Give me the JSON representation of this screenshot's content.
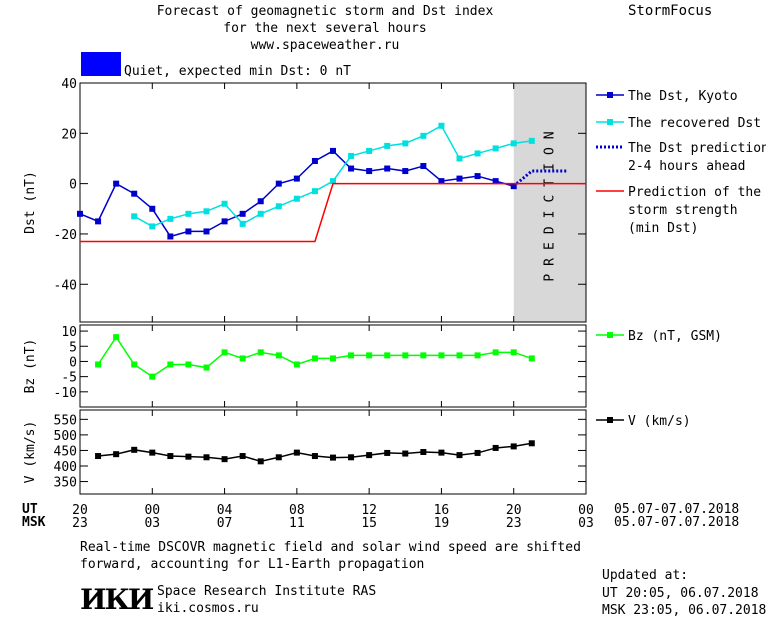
{
  "header": {
    "title_lines": [
      "Forecast of geomagnetic storm and Dst index",
      "for the next several hours",
      "www.spaceweather.ru"
    ],
    "brand": "StormFocus",
    "status_label": "Quiet, expected min Dst: 0 nT",
    "status_color": "#0000ff"
  },
  "footer": {
    "note_lines": [
      "Real-time DSCOVR magnetic field and solar wind speed are shifted",
      "forward, accounting for L1-Earth propagation"
    ],
    "logo_text": "ИКИ",
    "institute_lines": [
      "Space Research Institute RAS",
      "iki.cosmos.ru"
    ],
    "updated_label": "Updated at:",
    "updated_ut": "UT  20:05, 06.07.2018",
    "updated_msk": "MSK 23:05, 06.07.2018"
  },
  "chart_data": [
    {
      "type": "line",
      "ylabel": "Dst (nT)",
      "ylim": [
        -55,
        40
      ],
      "yticks": [
        40,
        20,
        0,
        -20,
        -40
      ],
      "prediction_text": "PREDICTION",
      "series": [
        {
          "name": "The Dst, Kyoto",
          "color": "#0000cc",
          "marker": "square",
          "x": [
            -4,
            -3,
            -2,
            -1,
            0,
            1,
            2,
            3,
            4,
            5,
            6,
            7,
            8,
            9,
            10,
            11,
            12,
            13,
            14,
            15,
            16,
            17,
            18,
            19,
            20
          ],
          "y": [
            -12,
            -15,
            0,
            -4,
            -10,
            -21,
            -19,
            -19,
            -15,
            -12,
            -7,
            0,
            2,
            9,
            13,
            6,
            5,
            6,
            5,
            7,
            1,
            2,
            3,
            1,
            -1
          ]
        },
        {
          "name": "The recovered Dst",
          "color": "#00e0e0",
          "marker": "square",
          "x": [
            -1,
            0,
            1,
            2,
            3,
            4,
            5,
            6,
            7,
            8,
            9,
            10,
            11,
            12,
            13,
            14,
            15,
            16,
            17,
            18,
            19,
            20,
            21
          ],
          "y": [
            -13,
            -17,
            -14,
            -12,
            -11,
            -8,
            -16,
            -12,
            -9,
            -6,
            -3,
            1,
            11,
            13,
            15,
            16,
            19,
            23,
            10,
            12,
            14,
            16,
            17
          ]
        },
        {
          "name": "The Dst prediction\n2-4 hours ahead",
          "color": "#0000cc",
          "style": "dotted",
          "x": [
            20,
            21,
            22,
            23
          ],
          "y": [
            -1,
            5,
            5,
            5
          ]
        },
        {
          "name": "Prediction of the\nstorm strength\n(min Dst)",
          "color": "#ff0000",
          "style": "step",
          "x": [
            -4,
            9,
            10,
            24
          ],
          "y": [
            -23,
            -23,
            0,
            0
          ]
        }
      ]
    },
    {
      "type": "line",
      "ylabel": "Bz (nT)",
      "ylim": [
        -15,
        12
      ],
      "yticks": [
        10,
        5,
        0,
        -5,
        -10
      ],
      "series": [
        {
          "name": "Bz (nT, GSM)",
          "color": "#00ff00",
          "marker": "square",
          "x": [
            -3,
            -2,
            -1,
            0,
            1,
            2,
            3,
            4,
            5,
            6,
            7,
            8,
            9,
            10,
            11,
            12,
            13,
            14,
            15,
            16,
            17,
            18,
            19,
            20,
            21
          ],
          "y": [
            -1,
            8,
            -1,
            -5,
            -1,
            -1,
            -2,
            3,
            1,
            3,
            2,
            -1,
            1,
            1,
            2,
            2,
            2,
            2,
            2,
            2,
            2,
            2,
            3,
            3,
            1
          ]
        }
      ]
    },
    {
      "type": "line",
      "ylabel": "V (km/s)",
      "ylim": [
        310,
        580
      ],
      "yticks": [
        550,
        500,
        450,
        400,
        350
      ],
      "series": [
        {
          "name": "V (km/s)",
          "color": "#000000",
          "marker": "square",
          "x": [
            -3,
            -2,
            -1,
            0,
            1,
            2,
            3,
            4,
            5,
            6,
            7,
            8,
            9,
            10,
            11,
            12,
            13,
            14,
            15,
            16,
            17,
            18,
            19,
            20,
            21
          ],
          "y": [
            432,
            438,
            452,
            443,
            432,
            430,
            428,
            422,
            432,
            415,
            428,
            443,
            432,
            427,
            428,
            435,
            442,
            440,
            445,
            443,
            435,
            442,
            458,
            463,
            473
          ]
        }
      ]
    }
  ],
  "time_axis": {
    "ut_label": "UT",
    "msk_label": "MSK",
    "ut_ticks": [
      "20",
      "00",
      "04",
      "08",
      "12",
      "16",
      "20",
      "00"
    ],
    "msk_ticks": [
      "23",
      "03",
      "07",
      "11",
      "15",
      "19",
      "23",
      "03"
    ],
    "date_range": "05.07-07.07.2018"
  }
}
